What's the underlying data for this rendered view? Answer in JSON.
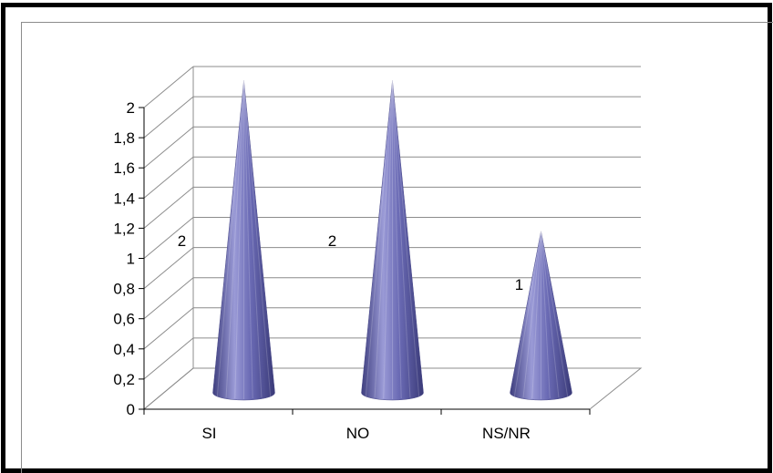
{
  "chart_data": {
    "type": "bar",
    "style": "3d-cone",
    "categories": [
      "SI",
      "NO",
      "NS/NR"
    ],
    "values": [
      2,
      2,
      1
    ],
    "data_labels": [
      "2",
      "2",
      "1"
    ],
    "y_ticks": [
      "0",
      "0,2",
      "0,4",
      "0,6",
      "0,8",
      "1",
      "1,2",
      "1,4",
      "1,6",
      "1,8",
      "2"
    ],
    "ylim": [
      0,
      2
    ],
    "grid": true,
    "legend": "none",
    "colors": {
      "cone": "#5f5fa8",
      "cone_dark": "#3e3e7e",
      "cone_light": "#9a9ad6",
      "grid": "#8c8c8c"
    }
  }
}
